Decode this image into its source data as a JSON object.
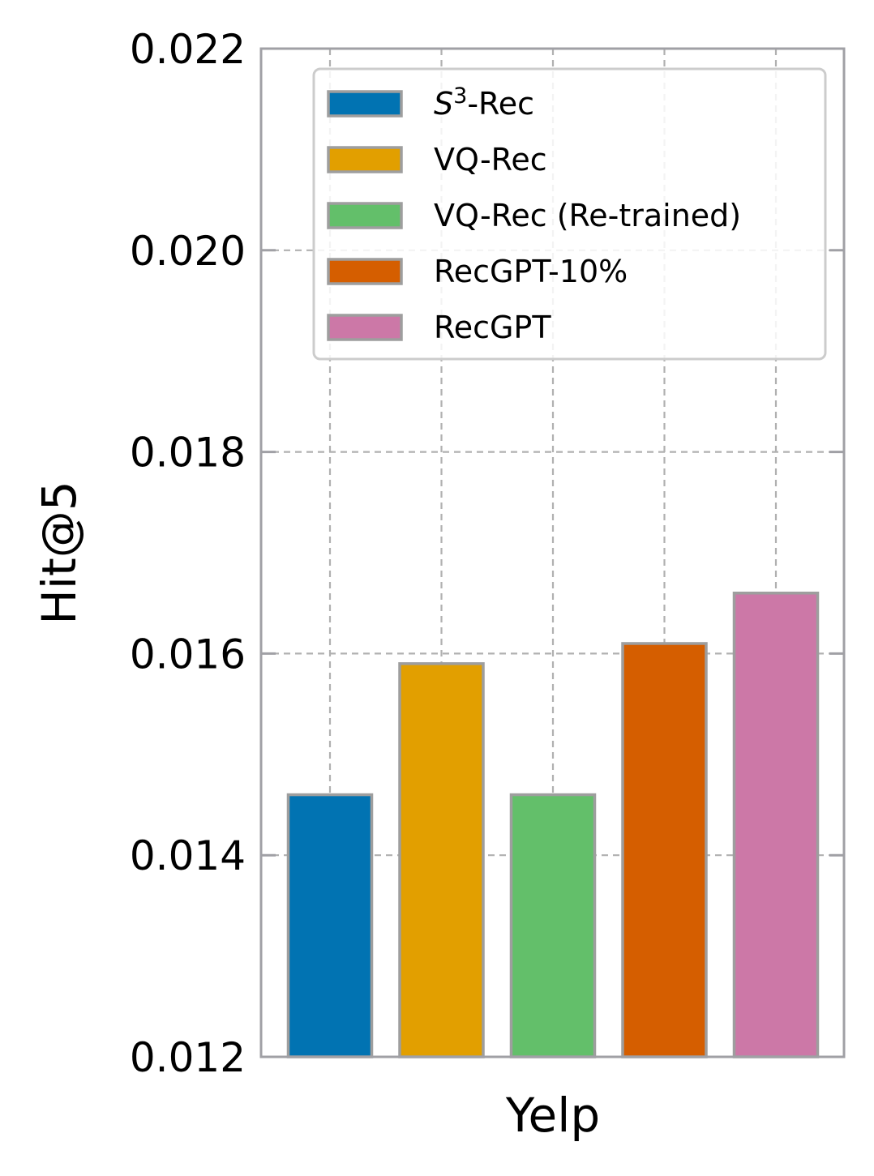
{
  "chart_data": {
    "type": "bar",
    "categories": [
      "Yelp"
    ],
    "series": [
      {
        "name": "S3-Rec",
        "label_base": "S",
        "label_sup": "3",
        "label_rest": "-Rec",
        "values": [
          0.0146
        ],
        "color": "#0173b2"
      },
      {
        "name": "VQ-Rec",
        "values": [
          0.0159
        ],
        "color": "#e29f00"
      },
      {
        "name": "VQ-Rec (Re-trained)",
        "values": [
          0.0146
        ],
        "color": "#63bf6a"
      },
      {
        "name": "RecGPT-10%",
        "values": [
          0.0161
        ],
        "color": "#d55e00"
      },
      {
        "name": "RecGPT",
        "values": [
          0.0166
        ],
        "color": "#cc78a7"
      }
    ],
    "xlabel": "Yelp",
    "ylabel": "Hit@5",
    "ylim": [
      0.012,
      0.022
    ],
    "yticks": [
      "0.012",
      "0.014",
      "0.016",
      "0.018",
      "0.020",
      "0.022"
    ],
    "grid": true,
    "legend_position": "top"
  }
}
